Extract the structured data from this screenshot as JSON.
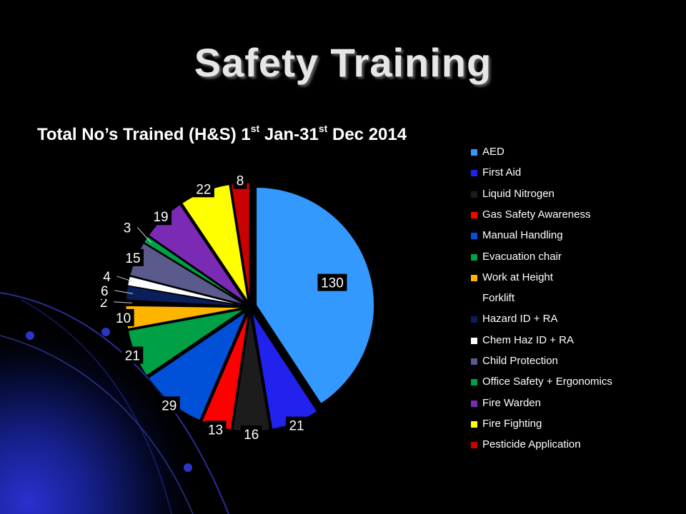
{
  "slide": {
    "title": "Safety Training"
  },
  "chart_title": {
    "part1": "Total No’s Trained (H&S) 1",
    "sup1": "st",
    "part2": " Jan-31",
    "sup2": "st",
    "part3": " Dec 2014"
  },
  "chart_data": {
    "type": "pie",
    "title": "Total No’s Trained (H&S) 1st Jan-31st Dec 2014",
    "legend_position": "right",
    "categories": [
      "AED",
      "First Aid",
      "Liquid Nitrogen",
      "Gas Safety Awareness",
      "Manual Handling",
      "Evacuation chair",
      "Work at Height",
      "Forklift",
      "Hazard ID + RA",
      "Chem Haz ID + RA",
      "Child Protection",
      "Office Safety + Ergonomics",
      "Fire Warden",
      "Fire Fighting",
      "Pesticide Application"
    ],
    "values": [
      130,
      21,
      16,
      13,
      29,
      21,
      10,
      2,
      6,
      4,
      15,
      3,
      19,
      22,
      8
    ],
    "data_labels": [
      "130",
      "21",
      "16",
      "13",
      "29",
      "21",
      "10",
      "2",
      "6",
      "4",
      "15",
      "3",
      "19",
      "22",
      "8"
    ],
    "colors": [
      "#3399ff",
      "#2222ee",
      "#1c1c1c",
      "#ff0000",
      "#0050d8",
      "#00a046",
      "#ffb400",
      "#000000",
      "#0a1e5a",
      "#ffffff",
      "#5a5a8c",
      "#00a046",
      "#7a2ab4",
      "#ffff00",
      "#c80000"
    ]
  }
}
